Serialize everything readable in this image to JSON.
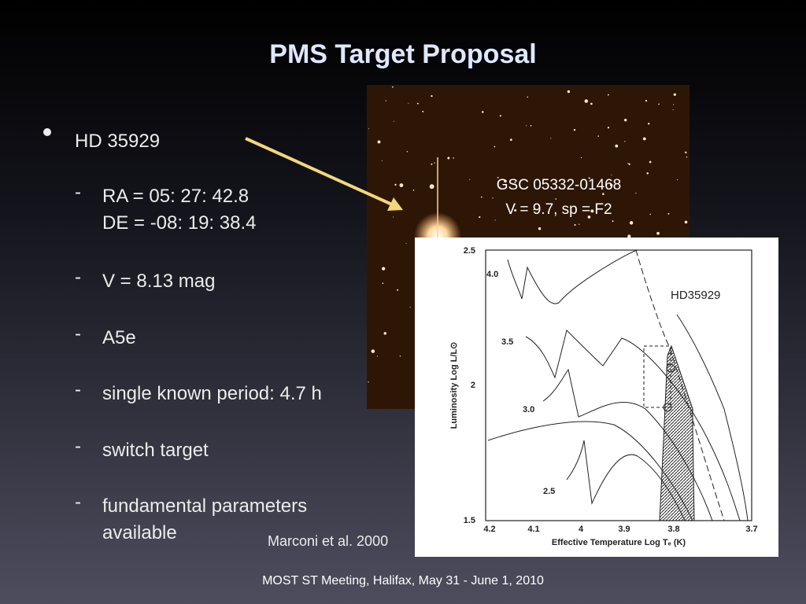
{
  "slide": {
    "title": "PMS Target Proposal",
    "bullet": "HD 35929",
    "items": [
      [
        "RA =  05: 27: 42.8",
        "DE = -08: 19: 38.4"
      ],
      [
        "V = 8.13 mag"
      ],
      [
        "A5e"
      ],
      [
        "single known period: 4.7 h"
      ],
      [
        "switch target"
      ],
      [
        "fundamental parameters",
        "available"
      ]
    ],
    "citation": "Marconi et al. 2000",
    "footer": "MOST ST Meeting, Halifax, May 31 - June 1, 2010"
  },
  "image": {
    "label_lines": [
      "GSC 05332-01468",
      "V = 9.7, sp = F2"
    ]
  },
  "figure": {
    "star_label": "HD35929",
    "x_label": "Effective Temperature Log Tₑ (K)",
    "y_label": "Luminosity Log L/L⊙",
    "x_tick_labels": [
      "4.2",
      "4.1",
      "4",
      "3.9",
      "3.8",
      "3.7"
    ],
    "y_tick_labels": [
      "2.5",
      "2",
      "1.5"
    ],
    "track_labels": [
      "4.0",
      "3.5",
      "3.0",
      "2.5"
    ]
  }
}
